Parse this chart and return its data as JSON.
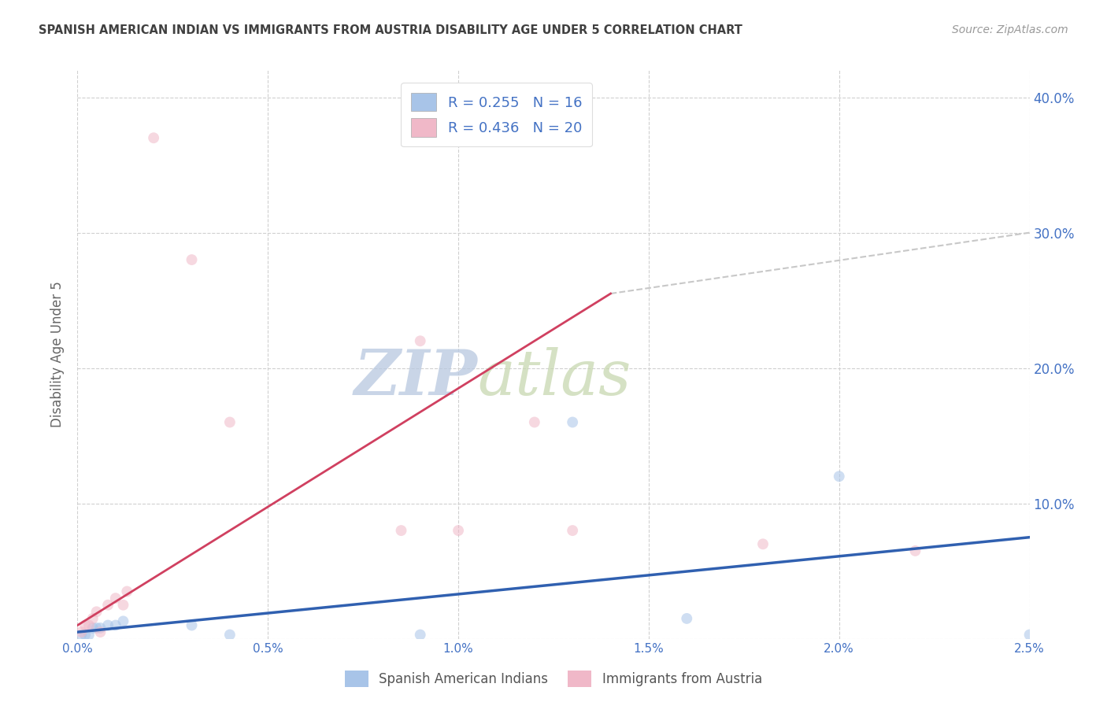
{
  "title": "SPANISH AMERICAN INDIAN VS IMMIGRANTS FROM AUSTRIA DISABILITY AGE UNDER 5 CORRELATION CHART",
  "source": "Source: ZipAtlas.com",
  "ylabel": "Disability Age Under 5",
  "watermark_zip": "ZIP",
  "watermark_atlas": "atlas",
  "legend_labels_bottom": [
    "Spanish American Indians",
    "Immigrants from Austria"
  ],
  "blue_scatter_x": [
    0.0001,
    0.0002,
    0.0003,
    0.0004,
    0.0005,
    0.0006,
    0.0008,
    0.001,
    0.0012,
    0.003,
    0.004,
    0.009,
    0.013,
    0.016,
    0.02,
    0.025
  ],
  "blue_scatter_y": [
    0.003,
    0.003,
    0.003,
    0.008,
    0.008,
    0.008,
    0.01,
    0.01,
    0.013,
    0.01,
    0.003,
    0.003,
    0.16,
    0.015,
    0.12,
    0.003
  ],
  "pink_scatter_x": [
    0.0001,
    0.0002,
    0.0003,
    0.0004,
    0.0005,
    0.0006,
    0.0008,
    0.001,
    0.0012,
    0.0013,
    0.002,
    0.003,
    0.004,
    0.0085,
    0.009,
    0.01,
    0.012,
    0.013,
    0.018,
    0.022
  ],
  "pink_scatter_y": [
    0.005,
    0.01,
    0.01,
    0.015,
    0.02,
    0.005,
    0.025,
    0.03,
    0.025,
    0.035,
    0.37,
    0.28,
    0.16,
    0.08,
    0.22,
    0.08,
    0.16,
    0.08,
    0.07,
    0.065
  ],
  "blue_line_x": [
    0.0,
    0.025
  ],
  "blue_line_y": [
    0.005,
    0.075
  ],
  "pink_line_x": [
    0.0,
    0.014
  ],
  "pink_line_y": [
    0.01,
    0.255
  ],
  "dashed_line_x": [
    0.014,
    0.025
  ],
  "dashed_line_y": [
    0.255,
    0.3
  ],
  "xlim": [
    0.0,
    0.025
  ],
  "ylim": [
    0.0,
    0.42
  ],
  "x_ticks": [
    0.0,
    0.005,
    0.01,
    0.015,
    0.02,
    0.025
  ],
  "x_tick_labels": [
    "0.0%",
    "0.5%",
    "1.0%",
    "1.5%",
    "2.0%",
    "2.5%"
  ],
  "y_ticks_right": [
    0.0,
    0.1,
    0.2,
    0.3,
    0.4
  ],
  "y_tick_labels_right": [
    "",
    "10.0%",
    "20.0%",
    "30.0%",
    "40.0%"
  ],
  "scatter_size": 100,
  "scatter_alpha": 0.55,
  "blue_color": "#a8c4e8",
  "pink_color": "#f0b8c8",
  "blue_line_color": "#3060b0",
  "pink_line_color": "#d04060",
  "grid_color": "#d0d0d0",
  "bg_color": "#ffffff",
  "title_color": "#404040",
  "right_axis_color": "#4472c4",
  "dashed_line_color": "#c8c8c8"
}
